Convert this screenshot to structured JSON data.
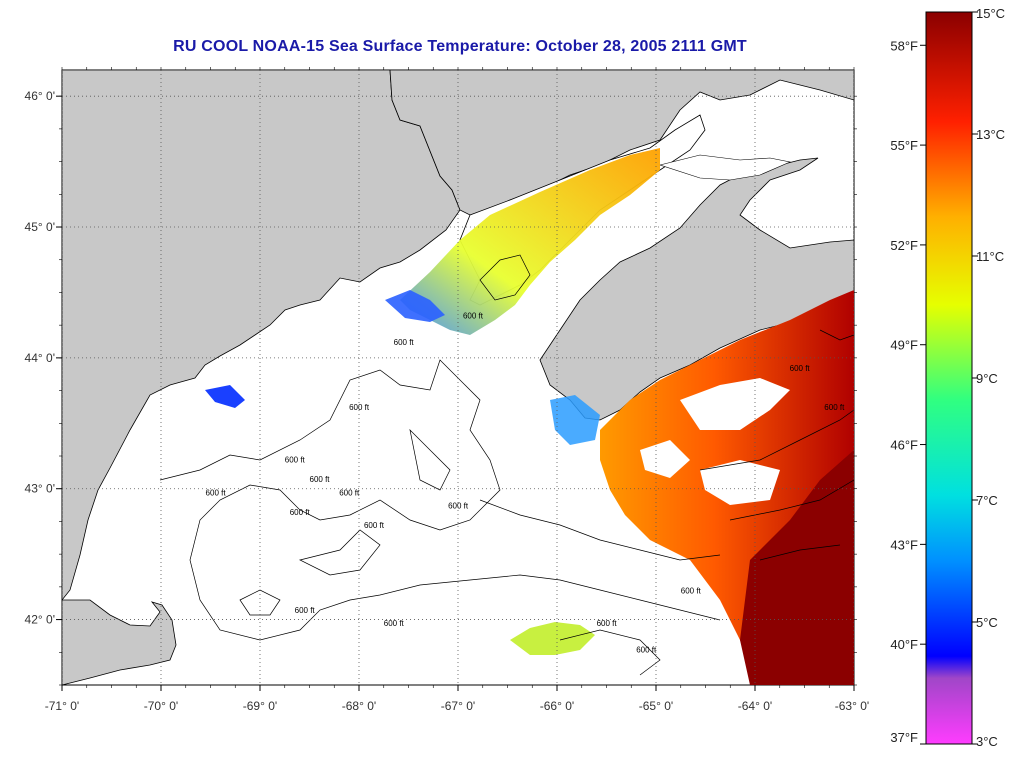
{
  "title": "RU COOL  NOAA-15  Sea Surface Temperature:  October 28, 2005 2111 GMT",
  "map": {
    "lon_range": [
      -71,
      -63
    ],
    "lat_range": [
      41.5,
      46.2
    ],
    "land_color": "#c8c8c8",
    "water_no_data_color": "#ffffff",
    "x_ticks": [
      {
        "value": -71,
        "label": "-71° 0'"
      },
      {
        "value": -70,
        "label": "-70° 0'"
      },
      {
        "value": -69,
        "label": "-69° 0'"
      },
      {
        "value": -68,
        "label": "-68° 0'"
      },
      {
        "value": -67,
        "label": "-67° 0'"
      },
      {
        "value": -66,
        "label": "-66° 0'"
      },
      {
        "value": -65,
        "label": "-65° 0'"
      },
      {
        "value": -64,
        "label": "-64° 0'"
      },
      {
        "value": -63,
        "label": "-63° 0'"
      }
    ],
    "y_ticks": [
      {
        "value": 46,
        "label": "46° 0'"
      },
      {
        "value": 45,
        "label": "45° 0'"
      },
      {
        "value": 44,
        "label": "44° 0'"
      },
      {
        "value": 43,
        "label": "43° 0'"
      },
      {
        "value": 42,
        "label": "42° 0'"
      }
    ],
    "contour_labels": [
      {
        "text": "600 ft",
        "lon": -68.75,
        "lat": 43.2
      },
      {
        "text": "600 ft",
        "lon": -67.65,
        "lat": 44.1
      },
      {
        "text": "600 ft",
        "lon": -68.1,
        "lat": 43.6
      },
      {
        "text": "600 ft",
        "lon": -68.5,
        "lat": 43.05
      },
      {
        "text": "600 ft",
        "lon": -69.55,
        "lat": 42.95
      },
      {
        "text": "600 ft",
        "lon": -68.7,
        "lat": 42.8
      },
      {
        "text": "600 ft",
        "lon": -68.2,
        "lat": 42.95
      },
      {
        "text": "600 ft",
        "lon": -67.95,
        "lat": 42.7
      },
      {
        "text": "600 ft",
        "lon": -67.1,
        "lat": 42.85
      },
      {
        "text": "600 ft",
        "lon": -66.95,
        "lat": 44.3
      },
      {
        "text": "600 ft",
        "lon": -68.65,
        "lat": 42.05
      },
      {
        "text": "600 ft",
        "lon": -67.75,
        "lat": 41.95
      },
      {
        "text": "600 ft",
        "lon": -65.6,
        "lat": 41.95
      },
      {
        "text": "600 ft",
        "lon": -64.75,
        "lat": 42.2
      },
      {
        "text": "600 ft",
        "lon": -65.2,
        "lat": 41.75
      },
      {
        "text": "600 ft",
        "lon": -63.65,
        "lat": 43.9
      },
      {
        "text": "600 ft",
        "lon": -63.3,
        "lat": 43.6
      }
    ]
  },
  "colorbar": {
    "colors": [
      "#ff3cff",
      "#a046c8",
      "#0000ff",
      "#0090ff",
      "#00e0e0",
      "#30ff80",
      "#e6ff00",
      "#ffb000",
      "#ff2000",
      "#8b0000"
    ],
    "fahrenheit_labels": [
      {
        "value": 58,
        "label": "58°F"
      },
      {
        "value": 55,
        "label": "55°F"
      },
      {
        "value": 52,
        "label": "52°F"
      },
      {
        "value": 49,
        "label": "49°F"
      },
      {
        "value": 46,
        "label": "46°F"
      },
      {
        "value": 43,
        "label": "43°F"
      },
      {
        "value": 40,
        "label": "40°F"
      },
      {
        "value": 37,
        "label": "37°F"
      }
    ],
    "celsius_labels": [
      {
        "value": 15,
        "label": "15°C"
      },
      {
        "value": 13,
        "label": "13°C"
      },
      {
        "value": 11,
        "label": "11°C"
      },
      {
        "value": 9,
        "label": "9°C"
      },
      {
        "value": 7,
        "label": "7°C"
      },
      {
        "value": 5,
        "label": "5°C"
      },
      {
        "value": 3,
        "label": "3°C"
      }
    ]
  }
}
